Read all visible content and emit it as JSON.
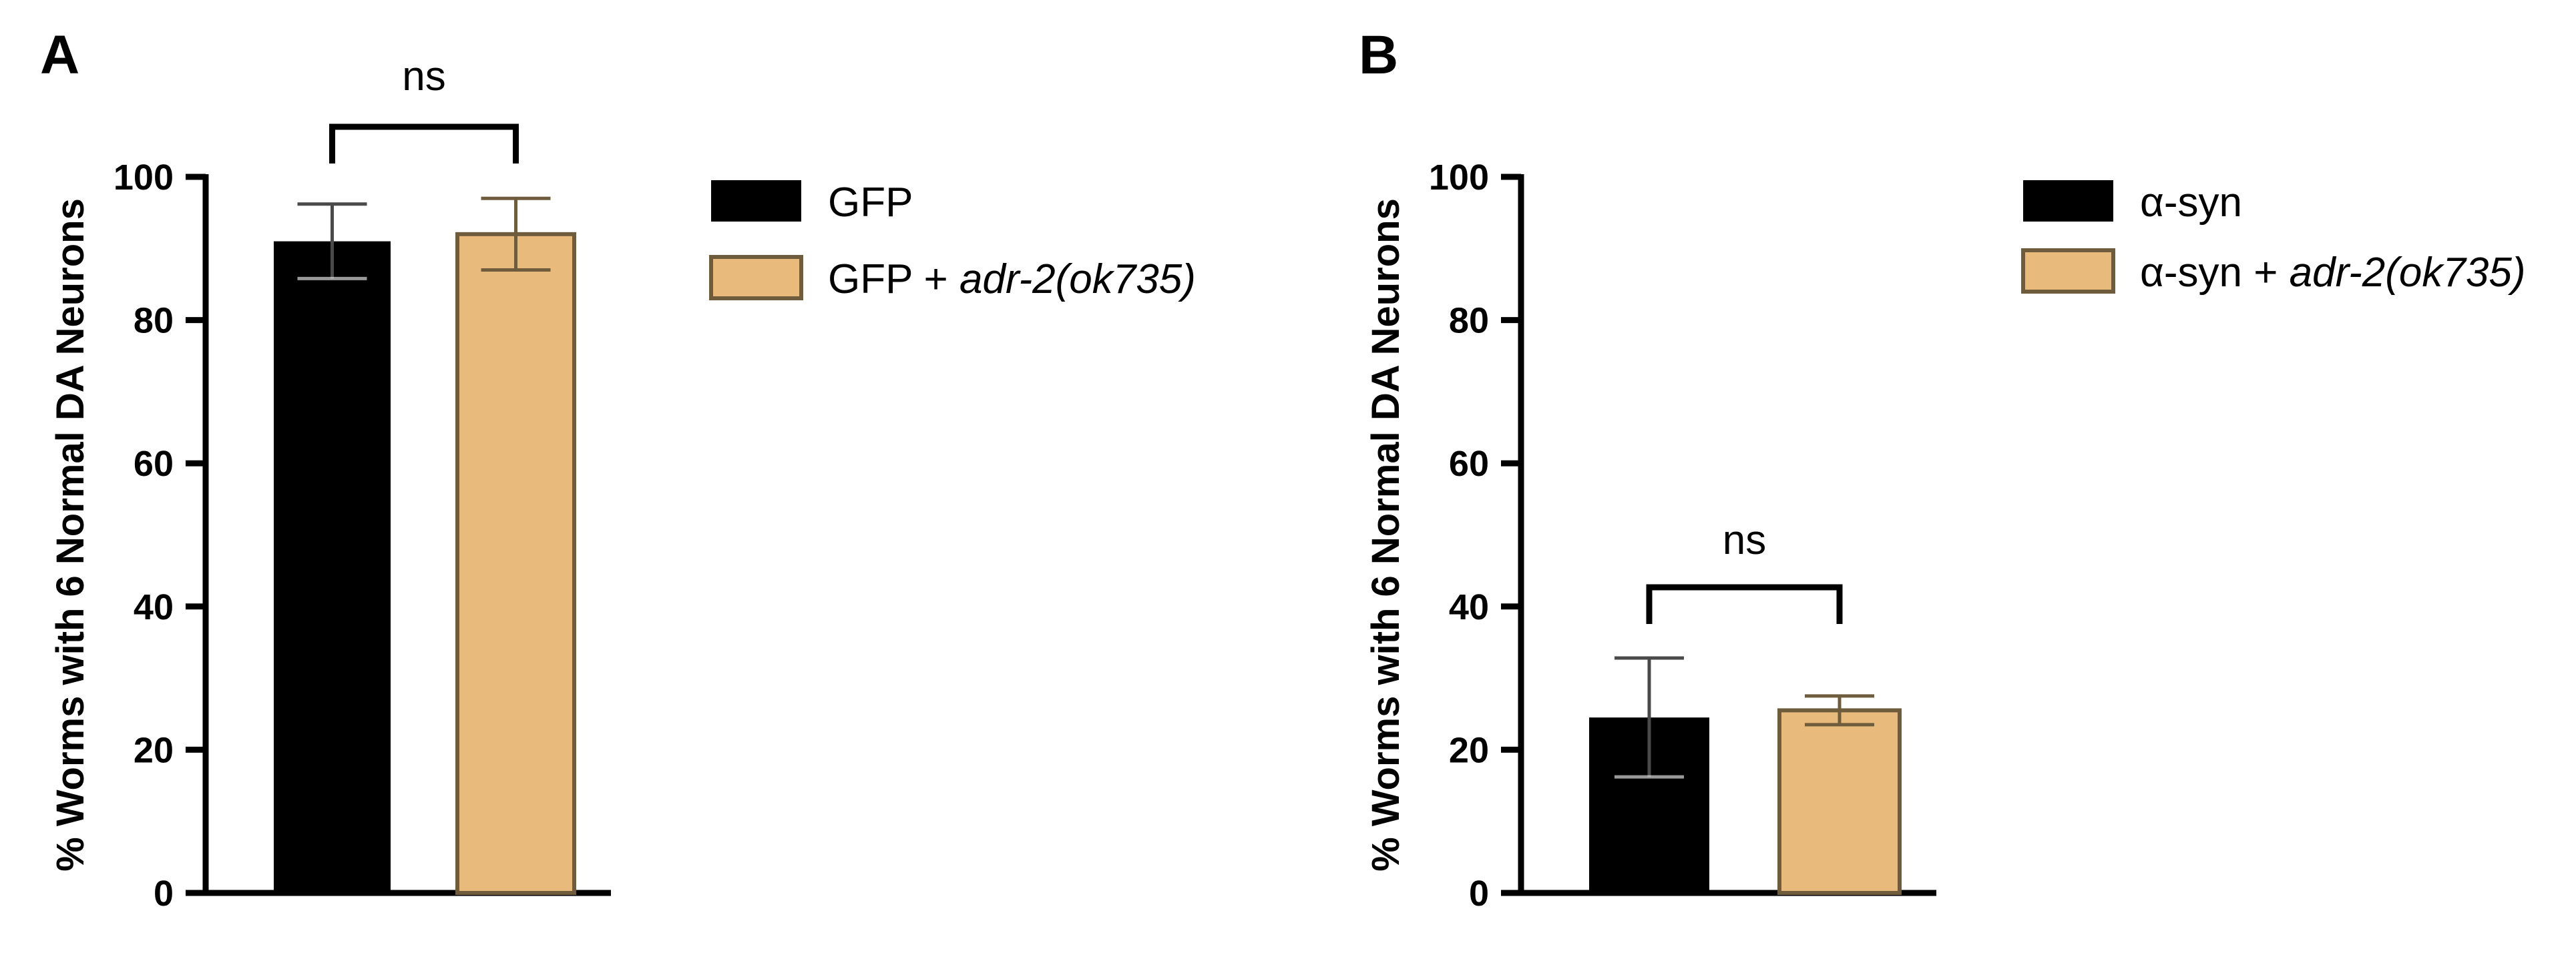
{
  "colors": {
    "black_bar": "#000000",
    "tan_bar": "#e8bb7d",
    "tan_outline": "#6e5c3c",
    "error_bar": "#4a4a4a"
  },
  "chart_data": [
    {
      "type": "bar",
      "panel_label": "A",
      "ylabel": "% Worms with 6 Normal DA Neurons",
      "ylim": [
        0,
        100
      ],
      "yticks": [
        0,
        20,
        40,
        60,
        80,
        100
      ],
      "legend_position": "right",
      "bars": [
        {
          "name": "GFP",
          "name_plain": "GFP",
          "name_italic": "",
          "value": 91,
          "error": 5.2,
          "color": "#000000"
        },
        {
          "name": "GFP + adr-2(ok735)",
          "name_plain": "GFP + ",
          "name_italic": "adr-2(ok735)",
          "value": 92,
          "error": 5.0,
          "color": "#e8bb7d"
        }
      ],
      "annotation": {
        "text": "ns",
        "between": [
          0,
          1
        ]
      }
    },
    {
      "type": "bar",
      "panel_label": "B",
      "ylabel": "% Worms with 6 Normal DA Neurons",
      "ylim": [
        0,
        100
      ],
      "yticks": [
        0,
        20,
        40,
        60,
        80,
        100
      ],
      "legend_position": "right",
      "bars": [
        {
          "name": "α-syn",
          "name_plain": "α-syn",
          "name_italic": "",
          "value": 24.5,
          "error": 8.3,
          "color": "#000000"
        },
        {
          "name": "α-syn + adr-2(ok735)",
          "name_plain": "α-syn + ",
          "name_italic": "adr-2(ok735)",
          "value": 25.5,
          "error": 2.0,
          "color": "#e8bb7d"
        }
      ],
      "annotation": {
        "text": "ns",
        "between": [
          0,
          1
        ]
      }
    }
  ]
}
